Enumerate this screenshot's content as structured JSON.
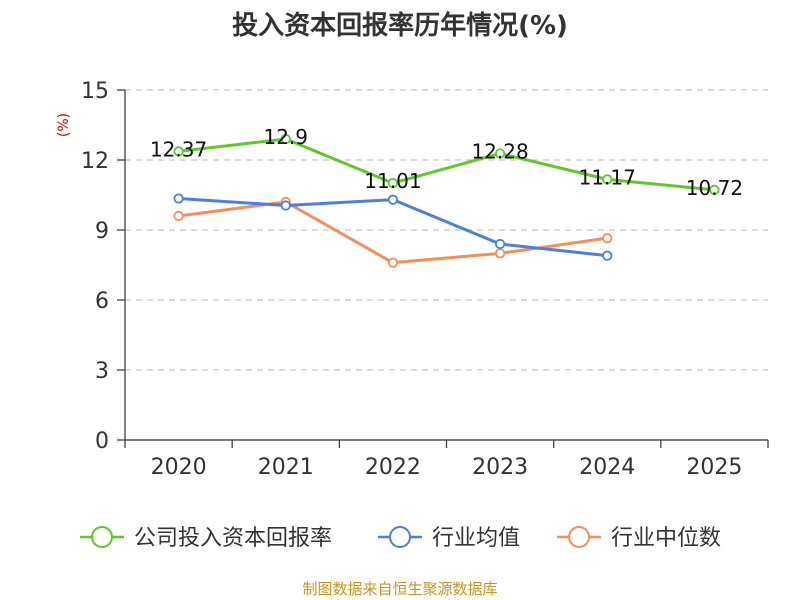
{
  "chart_data": {
    "type": "line",
    "title": "投入资本回报率历年情况(%)",
    "ylabel": "(%)",
    "xlabel": "",
    "categories": [
      "2020",
      "2021",
      "2022",
      "2023",
      "2024",
      "2025"
    ],
    "ylim": [
      0,
      15
    ],
    "yticks": [
      0,
      3,
      6,
      9,
      12,
      15
    ],
    "grid": true,
    "legend_position": "bottom",
    "series": [
      {
        "name": "公司投入资本回报率",
        "color": "#5fc92a",
        "values": [
          12.37,
          12.9,
          11.01,
          12.28,
          11.17,
          10.72
        ],
        "labels": [
          "12.37",
          "12.9",
          "11.01",
          "12.28",
          "11.17",
          "10.72"
        ]
      },
      {
        "name": "行业均值",
        "color": "#4e7fde",
        "values": [
          10.35,
          10.05,
          10.3,
          8.4,
          7.9,
          null
        ]
      },
      {
        "name": "行业中位数",
        "color": "#f58f5a",
        "values": [
          9.6,
          10.2,
          7.6,
          8.0,
          8.65,
          null
        ]
      }
    ]
  },
  "source": "制图数据来自恒生聚源数据库"
}
